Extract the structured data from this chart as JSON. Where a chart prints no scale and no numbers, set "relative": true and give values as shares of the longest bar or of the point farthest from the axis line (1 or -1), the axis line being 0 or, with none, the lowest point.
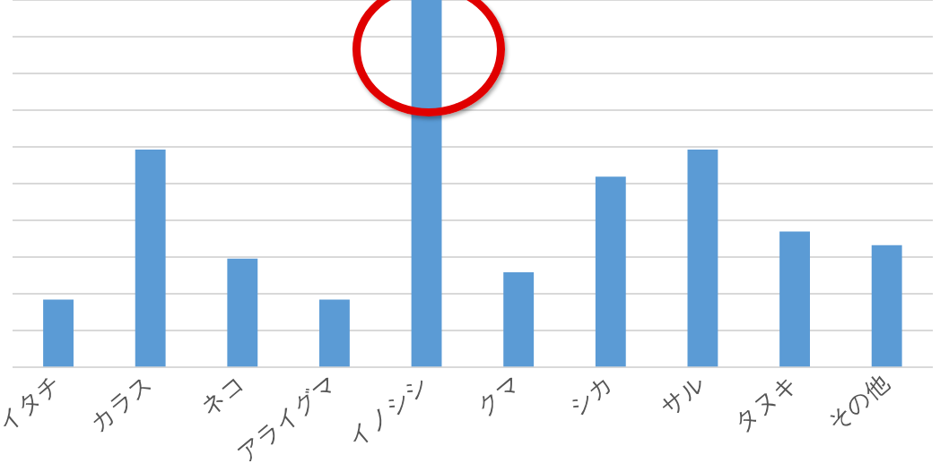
{
  "chart_data": {
    "type": "bar",
    "relative": true,
    "grid": "y",
    "categories": [
      "イタチ",
      "カラス",
      "ネコ",
      "アライグマ",
      "イノシシ",
      "クマ",
      "シカ",
      "サル",
      "タヌキ",
      "その他"
    ],
    "values": [
      0.185,
      0.593,
      0.296,
      0.185,
      1,
      0.259,
      0.519,
      0.593,
      0.37,
      0.333
    ],
    "color": "#5b9bd5"
  }
}
